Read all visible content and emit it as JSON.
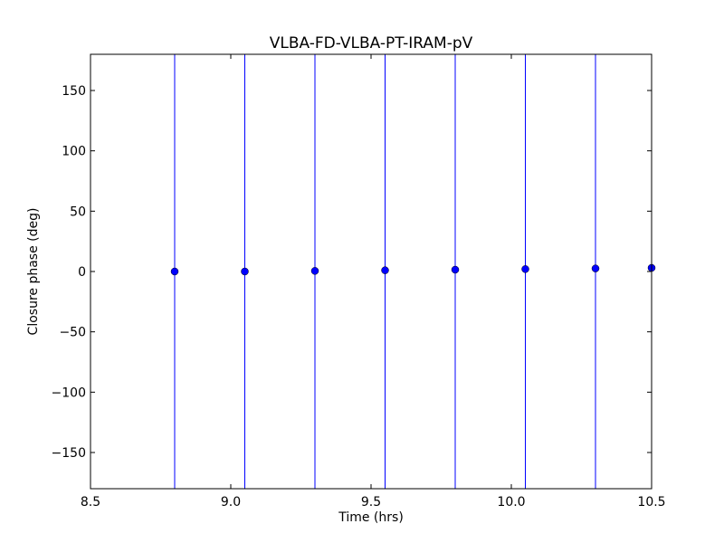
{
  "chart_data": {
    "type": "scatter",
    "title": "VLBA-FD-VLBA-PT-IRAM-pV",
    "xlabel": "Time (hrs)",
    "ylabel": "Closure phase (deg)",
    "xlim": [
      8.5,
      10.5
    ],
    "ylim": [
      -180,
      180
    ],
    "xticks": [
      8.5,
      9.0,
      9.5,
      10.0,
      10.5
    ],
    "xtick_labels": [
      "8.5",
      "9.0",
      "9.5",
      "10.0",
      "10.5"
    ],
    "yticks": [
      -150,
      -100,
      -50,
      0,
      50,
      100,
      150
    ],
    "ytick_labels": [
      "−150",
      "−100",
      "−50",
      "0",
      "50",
      "100",
      "150"
    ],
    "grid": false,
    "legend": "none",
    "marker_color": "#0000ff",
    "errorbar_color": "#0000ff",
    "points": [
      {
        "x": 8.8,
        "y": 0.0,
        "yerr_low": -180,
        "yerr_high": 180
      },
      {
        "x": 9.05,
        "y": 0.0,
        "yerr_low": -180,
        "yerr_high": 180
      },
      {
        "x": 9.3,
        "y": 0.5,
        "yerr_low": -180,
        "yerr_high": 180
      },
      {
        "x": 9.55,
        "y": 1.0,
        "yerr_low": -180,
        "yerr_high": 180
      },
      {
        "x": 9.8,
        "y": 1.5,
        "yerr_low": -180,
        "yerr_high": 180
      },
      {
        "x": 10.05,
        "y": 2.0,
        "yerr_low": -180,
        "yerr_high": 180
      },
      {
        "x": 10.3,
        "y": 2.5,
        "yerr_low": -180,
        "yerr_high": 180
      },
      {
        "x": 10.5,
        "y": 3.0,
        "yerr_low": -180,
        "yerr_high": 180
      }
    ]
  }
}
